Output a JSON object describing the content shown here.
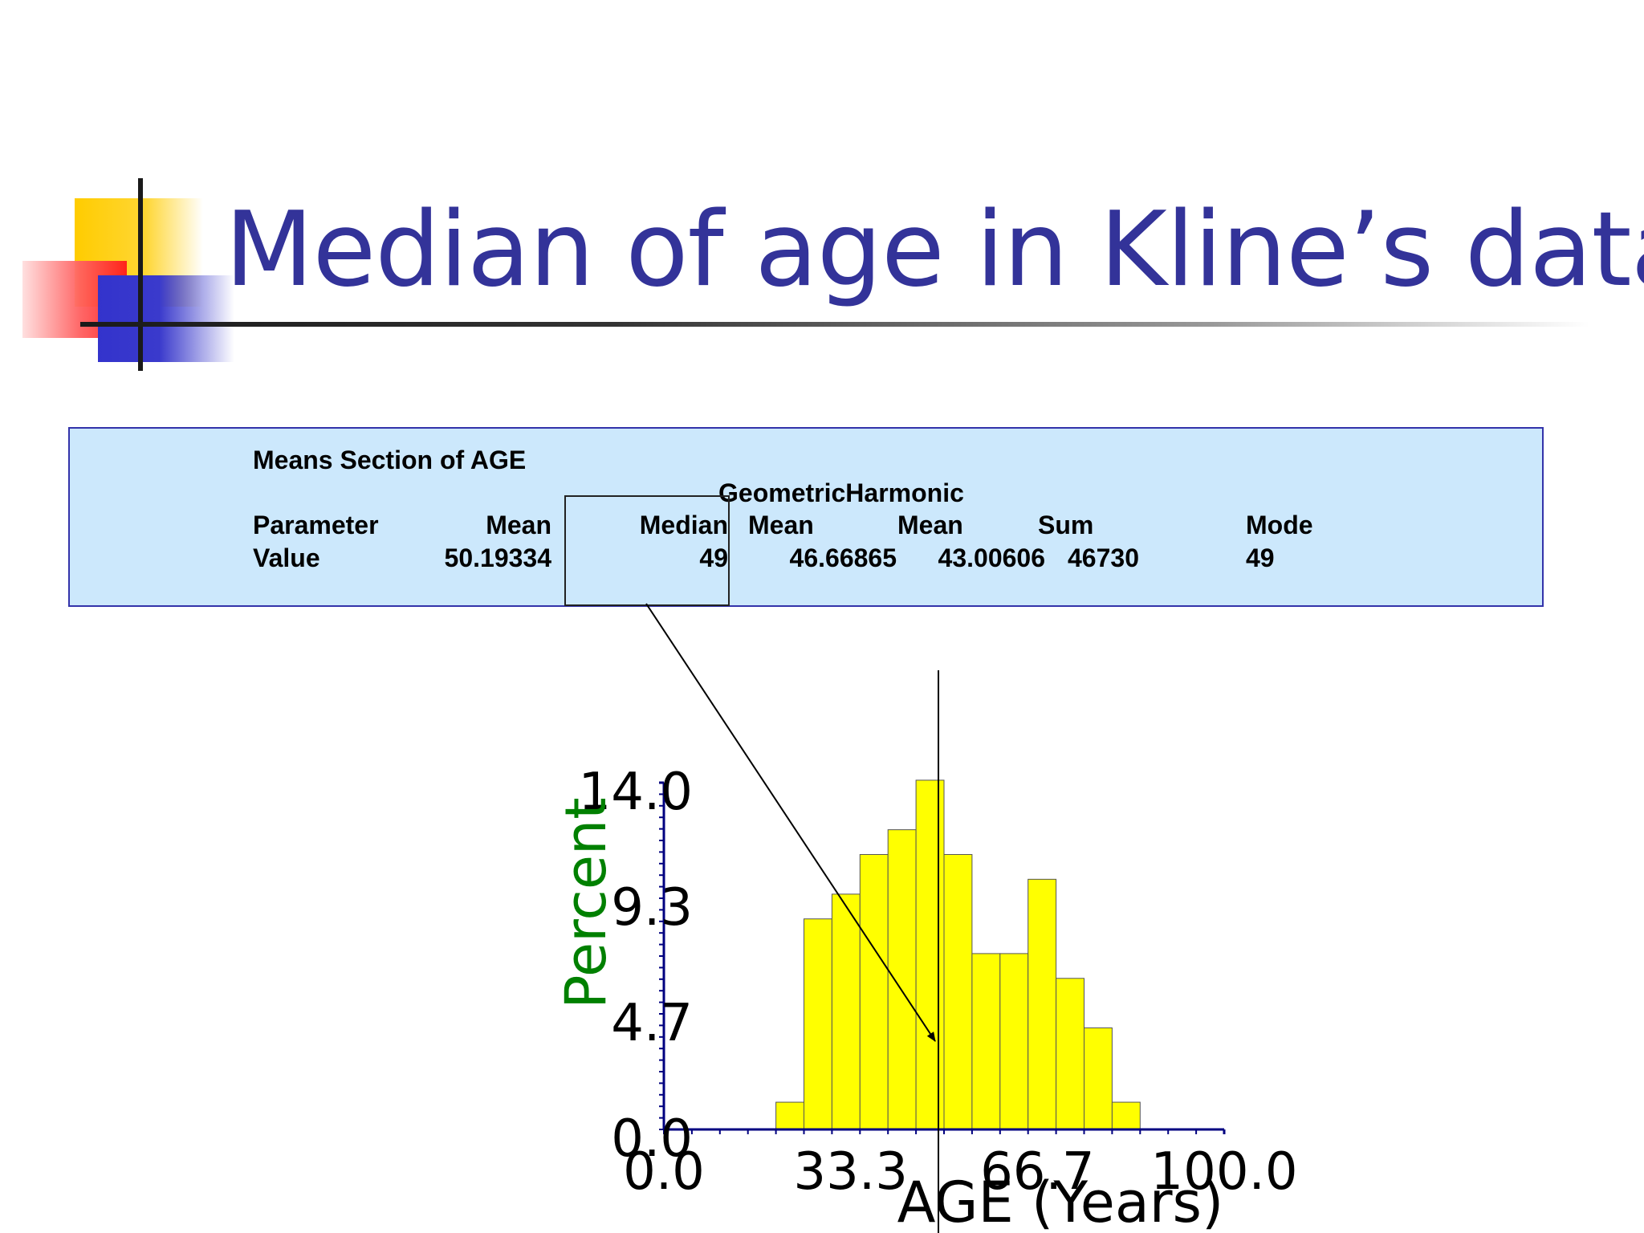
{
  "slide": {
    "title": "Median of age in Kline’s data"
  },
  "stats_table": {
    "section_title": "Means Section of AGE",
    "header_top": "GeometricHarmonic",
    "headers": [
      "Parameter",
      "Mean",
      "Median",
      "Mean",
      "Mean",
      "Sum",
      "Mode"
    ],
    "values": [
      "Value",
      "50.19334",
      "49",
      "46.66865",
      "43.00606",
      "46730",
      "49"
    ]
  },
  "colors": {
    "title": "#333399",
    "bar_fill": "#ffff00",
    "y_axis_title": "#008000",
    "panel_bg": "#cce8fc"
  },
  "chart_data": {
    "type": "bar",
    "xlabel": "AGE (Years)",
    "ylabel": "Percent",
    "xlim": [
      0,
      100
    ],
    "ylim": [
      0,
      14
    ],
    "x_tick_labels": [
      "0.0",
      "33.3",
      "66.7",
      "100.0"
    ],
    "y_tick_labels": [
      "0.0",
      "4.7",
      "9.3",
      "14.0"
    ],
    "bin_width": 5,
    "bins": [
      {
        "x0": 20,
        "x1": 25,
        "value": 1.1
      },
      {
        "x0": 25,
        "x1": 30,
        "value": 8.5
      },
      {
        "x0": 30,
        "x1": 35,
        "value": 9.5
      },
      {
        "x0": 35,
        "x1": 40,
        "value": 11.1
      },
      {
        "x0": 40,
        "x1": 45,
        "value": 12.1
      },
      {
        "x0": 45,
        "x1": 50,
        "value": 14.1
      },
      {
        "x0": 50,
        "x1": 55,
        "value": 11.1
      },
      {
        "x0": 55,
        "x1": 60,
        "value": 7.1
      },
      {
        "x0": 60,
        "x1": 65,
        "value": 7.1
      },
      {
        "x0": 65,
        "x1": 70,
        "value": 10.1
      },
      {
        "x0": 70,
        "x1": 75,
        "value": 6.1
      },
      {
        "x0": 75,
        "x1": 80,
        "value": 4.1
      },
      {
        "x0": 80,
        "x1": 85,
        "value": 1.1
      }
    ],
    "reference_line": {
      "x": 49
    },
    "grid": false,
    "legend": "none"
  }
}
